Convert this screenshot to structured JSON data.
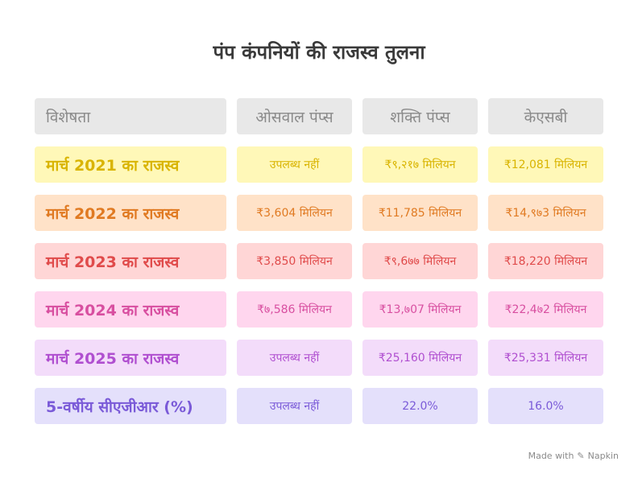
{
  "title": "पंप कंपनियों की राजस्व तुलना",
  "header": [
    "विशेषता",
    "ओसवाल पंप्स",
    "शक्ति पंप्स",
    "केएसबी"
  ],
  "rows": [
    {
      "label": "मार्च 2021 का राजस्व",
      "values": [
        "उपलब्ध नहीं",
        "₹९,२१७ मिलियन",
        "₹12,081 मिलियन"
      ],
      "bg": "#fff8b8",
      "color": "#d9b400"
    },
    {
      "label": "मार्च 2022 का राजस्व",
      "values": [
        "₹3,604 मिलियन",
        "₹11,785 मिलियन",
        "₹14,९७3 मिलियन"
      ],
      "bg": "#ffe2c8",
      "color": "#e07a22"
    },
    {
      "label": "मार्च 2023 का राजस्व",
      "values": [
        "₹3,850 मिलियन",
        "₹९,6७७ मिलियन",
        "₹18,220 मिलियन"
      ],
      "bg": "#ffd6d6",
      "color": "#e04b4b"
    },
    {
      "label": "मार्च 2024 का राजस्व",
      "values": [
        "₹७,586 मिलियन",
        "₹13,७07 मिलियन",
        "₹22,4७2 मिलियन"
      ],
      "bg": "#ffd6ee",
      "color": "#d84fa0"
    },
    {
      "label": "मार्च 2025 का राजस्व",
      "values": [
        "उपलब्ध नहीं",
        "₹25,160 मिलियन",
        "₹25,331 मिलियन"
      ],
      "bg": "#f3dcfa",
      "color": "#b04fd0"
    },
    {
      "label": "5-वर्षीय सीएजीआर (%)",
      "values": [
        "उपलब्ध नहीं",
        "22.0%",
        "16.0%"
      ],
      "bg": "#e4e0fb",
      "color": "#7a5ad8"
    }
  ],
  "footer": {
    "made_with": "Made with",
    "brand": "Napkin",
    "icon": "napkin-logo-icon"
  }
}
